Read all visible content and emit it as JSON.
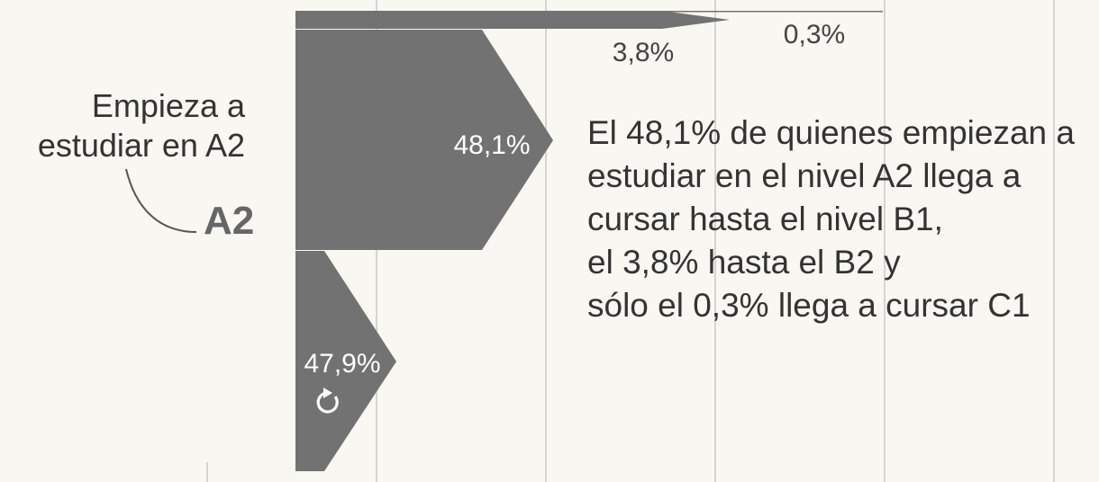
{
  "chart_data": {
    "type": "area",
    "start_label": [
      "Empieza a",
      "estudiar en A2"
    ],
    "level": "A2",
    "flows": [
      {
        "outcome": "llega a B1",
        "value": 48.1,
        "label": "48,1%"
      },
      {
        "outcome": "llega a B2",
        "value": 3.8,
        "label": "3,8%"
      },
      {
        "outcome": "llega a C1",
        "value": 0.3,
        "label": "0,3%"
      },
      {
        "outcome": "repite",
        "value": 47.9,
        "label": "47,9%",
        "icon": "repeat-icon"
      }
    ],
    "annotation": [
      "El 48,1% de quienes empiezan a",
      "estudiar en el nivel A2 llega a",
      "cursar hasta el nivel B1,",
      "el 3,8% hasta el B2 y",
      "sólo el 0,3% llega a cursar C1"
    ],
    "colors": {
      "flow": "#727272",
      "grid": "#c9c9c9",
      "background": "#f8f7f1",
      "text": "#333333",
      "label_inside": "#ffffff"
    }
  }
}
